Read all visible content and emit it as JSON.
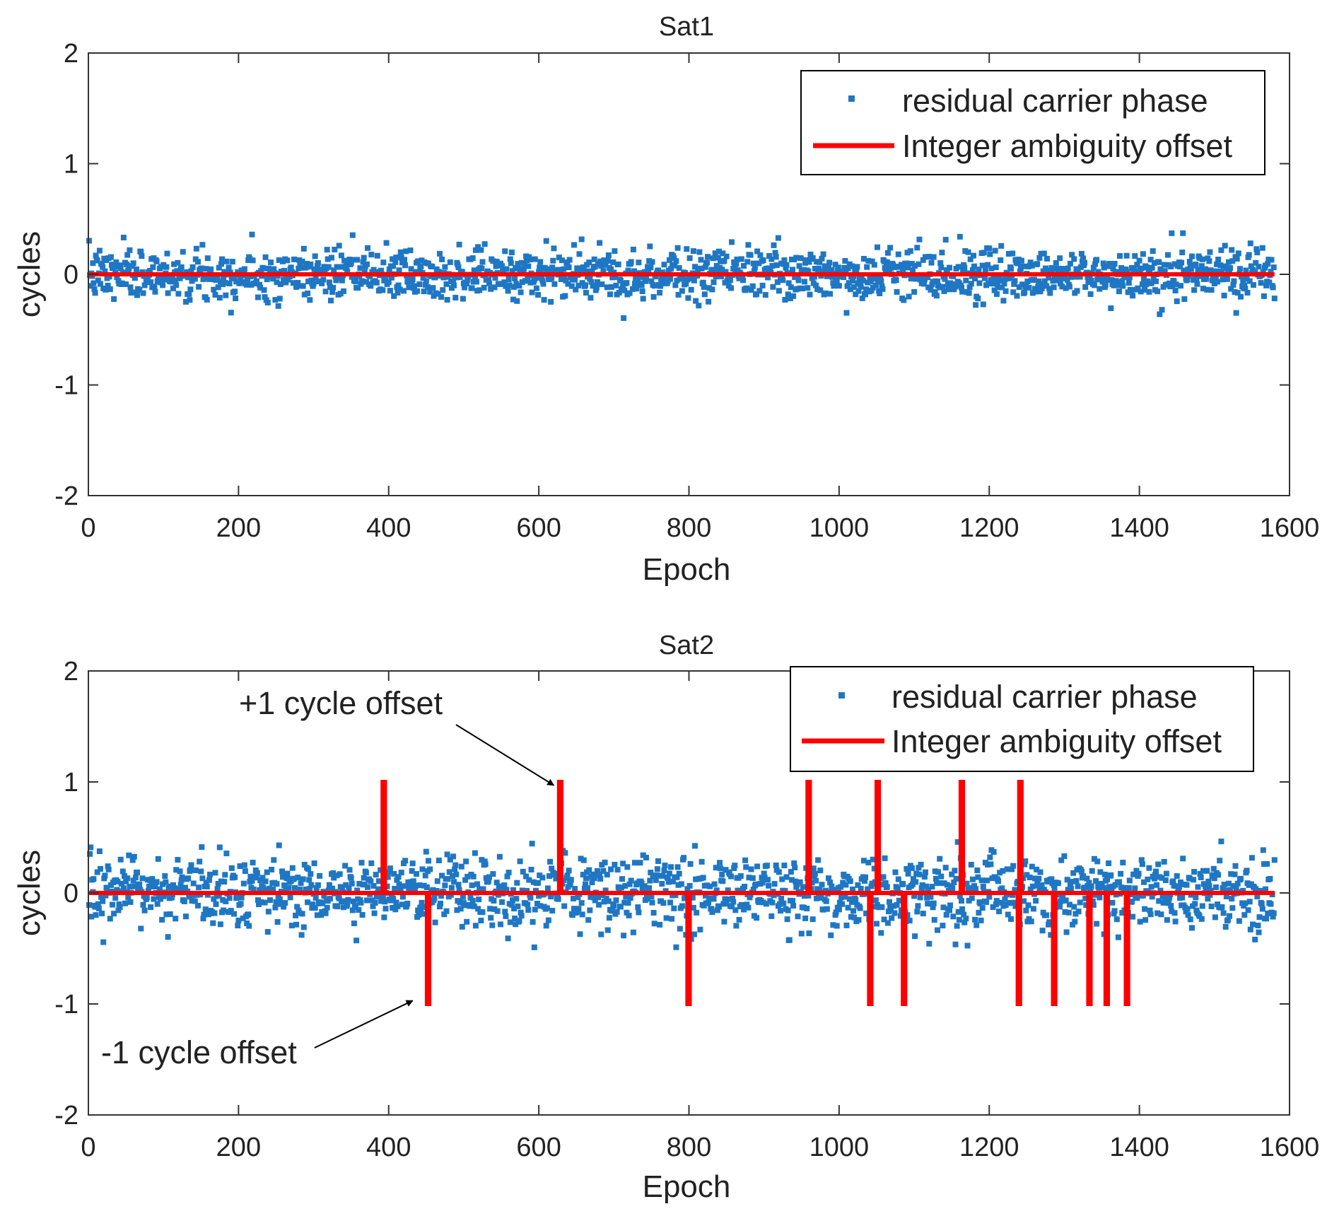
{
  "figure": {
    "background": "#ffffff"
  },
  "chart_data": [
    {
      "type": "scatter",
      "title": "Sat1",
      "xlabel": "Epoch",
      "ylabel": "cycles",
      "xlim": [
        0,
        1600
      ],
      "ylim": [
        -2,
        2
      ],
      "xticks": [
        0,
        200,
        400,
        600,
        800,
        1000,
        1200,
        1400,
        1600
      ],
      "yticks": [
        -2,
        -1,
        0,
        1,
        2
      ],
      "grid": false,
      "legend_position": "top-right",
      "series": [
        {
          "name": "residual carrier phase",
          "kind": "scatter",
          "color": "#1f77c4",
          "n_points": 1580,
          "epoch_range": [
            1,
            1580
          ],
          "mean": 0.0,
          "std": 0.11,
          "max_abs": 0.42,
          "seed": 7
        },
        {
          "name": "Integer ambiguity offset",
          "kind": "step",
          "color": "#ff0000",
          "baseline": 0,
          "epoch_range": [
            1,
            1580
          ],
          "spikes": []
        }
      ]
    },
    {
      "type": "scatter",
      "title": "Sat2",
      "xlabel": "Epoch",
      "ylabel": "cycles",
      "xlim": [
        0,
        1600
      ],
      "ylim": [
        -2,
        2
      ],
      "xticks": [
        0,
        200,
        400,
        600,
        800,
        1000,
        1200,
        1400,
        1600
      ],
      "yticks": [
        -2,
        -1,
        0,
        1,
        2
      ],
      "grid": false,
      "legend_position": "top-right",
      "series": [
        {
          "name": "residual carrier phase",
          "kind": "scatter",
          "color": "#1f77c4",
          "n_points": 1580,
          "epoch_range": [
            1,
            1580
          ],
          "mean": 0.0,
          "std": 0.16,
          "max_abs": 0.52,
          "seed": 13
        },
        {
          "name": "Integer ambiguity offset",
          "kind": "step",
          "color": "#ff0000",
          "baseline": 0,
          "epoch_range": [
            1,
            1580
          ],
          "spikes": [
            {
              "epoch": 392,
              "value": 1
            },
            {
              "epoch": 451,
              "value": -1
            },
            {
              "epoch": 627,
              "value": 1
            },
            {
              "epoch": 798,
              "value": -1
            },
            {
              "epoch": 958,
              "value": 1
            },
            {
              "epoch": 1040,
              "value": -1
            },
            {
              "epoch": 1050,
              "value": 1
            },
            {
              "epoch": 1085,
              "value": -1
            },
            {
              "epoch": 1162,
              "value": 1
            },
            {
              "epoch": 1238,
              "value": -1
            },
            {
              "epoch": 1240,
              "value": 1
            },
            {
              "epoch": 1285,
              "value": -1
            },
            {
              "epoch": 1332,
              "value": -1
            },
            {
              "epoch": 1355,
              "value": -1
            },
            {
              "epoch": 1382,
              "value": -1
            }
          ]
        }
      ],
      "annotations": [
        {
          "text": "+1 cycle offset",
          "points_to": {
            "epoch": 620,
            "value": 0.97
          }
        },
        {
          "text": "-1 cycle offset",
          "points_to": {
            "epoch": 432,
            "value": -0.97
          }
        }
      ]
    }
  ]
}
